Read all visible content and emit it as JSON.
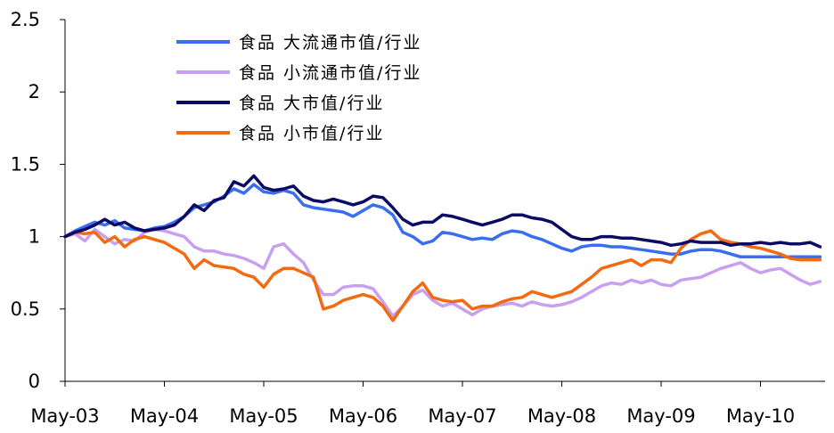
{
  "chart_data": {
    "type": "line",
    "title": "",
    "xlabel": "",
    "ylabel": "",
    "ylim": [
      0,
      2.5
    ],
    "yticks": [
      0,
      0.5,
      1,
      1.5,
      2,
      2.5
    ],
    "ytick_labels": [
      "0",
      "0.5",
      "1",
      "1.5",
      "2",
      "2.5"
    ],
    "xlim": [
      0,
      7.65
    ],
    "xticks": [
      0,
      1,
      2,
      3,
      4,
      5,
      6,
      7
    ],
    "xtick_labels": [
      "May-03",
      "May-04",
      "May-05",
      "May-06",
      "May-07",
      "May-08",
      "May-09",
      "May-10"
    ],
    "grid": false,
    "legend_position": "top-left",
    "series": [
      {
        "name": "食品 大流通市值/行业",
        "color": "#3A6EF0",
        "x": [
          0,
          0.1,
          0.2,
          0.3,
          0.4,
          0.5,
          0.6,
          0.7,
          0.8,
          0.9,
          1.0,
          1.1,
          1.2,
          1.3,
          1.4,
          1.5,
          1.6,
          1.7,
          1.8,
          1.9,
          2.0,
          2.1,
          2.2,
          2.3,
          2.4,
          2.5,
          2.6,
          2.7,
          2.8,
          2.9,
          3.0,
          3.1,
          3.2,
          3.3,
          3.4,
          3.5,
          3.6,
          3.7,
          3.8,
          3.9,
          4.0,
          4.1,
          4.2,
          4.3,
          4.4,
          4.5,
          4.6,
          4.7,
          4.8,
          4.9,
          5.0,
          5.1,
          5.2,
          5.3,
          5.4,
          5.5,
          5.6,
          5.7,
          5.8,
          5.9,
          6.0,
          6.1,
          6.2,
          6.3,
          6.4,
          6.5,
          6.6,
          6.7,
          6.8,
          6.9,
          7.0,
          7.1,
          7.2,
          7.3,
          7.4,
          7.5,
          7.6
        ],
        "y": [
          1.0,
          1.04,
          1.07,
          1.1,
          1.08,
          1.11,
          1.06,
          1.05,
          1.04,
          1.06,
          1.07,
          1.1,
          1.14,
          1.2,
          1.22,
          1.24,
          1.28,
          1.33,
          1.3,
          1.36,
          1.31,
          1.3,
          1.32,
          1.3,
          1.22,
          1.2,
          1.19,
          1.18,
          1.17,
          1.14,
          1.18,
          1.22,
          1.2,
          1.15,
          1.03,
          1.0,
          0.95,
          0.97,
          1.03,
          1.02,
          1.0,
          0.98,
          0.99,
          0.98,
          1.02,
          1.04,
          1.03,
          1.0,
          0.98,
          0.95,
          0.92,
          0.9,
          0.93,
          0.94,
          0.94,
          0.93,
          0.93,
          0.92,
          0.91,
          0.9,
          0.89,
          0.88,
          0.88,
          0.9,
          0.91,
          0.91,
          0.9,
          0.88,
          0.86,
          0.86,
          0.86,
          0.86,
          0.86,
          0.86,
          0.86,
          0.86,
          0.86
        ]
      },
      {
        "name": "食品 小流通市值/行业",
        "color": "#C9A0F0",
        "x": [
          0,
          0.1,
          0.2,
          0.3,
          0.4,
          0.5,
          0.6,
          0.7,
          0.8,
          0.9,
          1.0,
          1.1,
          1.2,
          1.3,
          1.4,
          1.5,
          1.6,
          1.7,
          1.8,
          1.9,
          2.0,
          2.1,
          2.2,
          2.3,
          2.4,
          2.5,
          2.6,
          2.7,
          2.8,
          2.9,
          3.0,
          3.1,
          3.2,
          3.3,
          3.4,
          3.5,
          3.6,
          3.7,
          3.8,
          3.9,
          4.0,
          4.1,
          4.2,
          4.3,
          4.4,
          4.5,
          4.6,
          4.7,
          4.8,
          4.9,
          5.0,
          5.1,
          5.2,
          5.3,
          5.4,
          5.5,
          5.6,
          5.7,
          5.8,
          5.9,
          6.0,
          6.1,
          6.2,
          6.3,
          6.4,
          6.5,
          6.6,
          6.7,
          6.8,
          6.9,
          7.0,
          7.1,
          7.2,
          7.3,
          7.4,
          7.5,
          7.6
        ],
        "y": [
          1.0,
          1.02,
          0.97,
          1.05,
          1.0,
          0.95,
          0.98,
          0.97,
          1.03,
          1.05,
          1.04,
          1.02,
          1.0,
          0.93,
          0.9,
          0.9,
          0.88,
          0.87,
          0.85,
          0.82,
          0.78,
          0.93,
          0.95,
          0.88,
          0.82,
          0.7,
          0.6,
          0.6,
          0.65,
          0.66,
          0.66,
          0.64,
          0.55,
          0.45,
          0.52,
          0.6,
          0.63,
          0.56,
          0.52,
          0.54,
          0.5,
          0.46,
          0.5,
          0.52,
          0.53,
          0.54,
          0.52,
          0.55,
          0.53,
          0.52,
          0.53,
          0.55,
          0.58,
          0.62,
          0.66,
          0.68,
          0.67,
          0.7,
          0.68,
          0.7,
          0.67,
          0.66,
          0.7,
          0.71,
          0.72,
          0.75,
          0.78,
          0.8,
          0.82,
          0.78,
          0.75,
          0.77,
          0.78,
          0.74,
          0.7,
          0.67,
          0.69
        ]
      },
      {
        "name": "食品 大市值/行业",
        "color": "#0B0B66",
        "x": [
          0,
          0.1,
          0.2,
          0.3,
          0.4,
          0.5,
          0.6,
          0.7,
          0.8,
          0.9,
          1.0,
          1.1,
          1.2,
          1.3,
          1.4,
          1.5,
          1.6,
          1.7,
          1.8,
          1.9,
          2.0,
          2.1,
          2.2,
          2.3,
          2.4,
          2.5,
          2.6,
          2.7,
          2.8,
          2.9,
          3.0,
          3.1,
          3.2,
          3.3,
          3.4,
          3.5,
          3.6,
          3.7,
          3.8,
          3.9,
          4.0,
          4.1,
          4.2,
          4.3,
          4.4,
          4.5,
          4.6,
          4.7,
          4.8,
          4.9,
          5.0,
          5.1,
          5.2,
          5.3,
          5.4,
          5.5,
          5.6,
          5.7,
          5.8,
          5.9,
          6.0,
          6.1,
          6.2,
          6.3,
          6.4,
          6.5,
          6.6,
          6.7,
          6.8,
          6.9,
          7.0,
          7.1,
          7.2,
          7.3,
          7.4,
          7.5,
          7.6
        ],
        "y": [
          1.0,
          1.03,
          1.05,
          1.08,
          1.12,
          1.08,
          1.1,
          1.06,
          1.04,
          1.05,
          1.06,
          1.08,
          1.14,
          1.22,
          1.18,
          1.25,
          1.27,
          1.38,
          1.35,
          1.42,
          1.34,
          1.32,
          1.33,
          1.35,
          1.28,
          1.25,
          1.24,
          1.26,
          1.24,
          1.22,
          1.24,
          1.28,
          1.27,
          1.2,
          1.12,
          1.08,
          1.1,
          1.1,
          1.15,
          1.14,
          1.12,
          1.1,
          1.08,
          1.1,
          1.12,
          1.15,
          1.15,
          1.13,
          1.12,
          1.1,
          1.05,
          1.0,
          0.98,
          0.98,
          1.0,
          1.0,
          0.99,
          0.99,
          0.98,
          0.97,
          0.96,
          0.94,
          0.95,
          0.97,
          0.96,
          0.96,
          0.96,
          0.94,
          0.95,
          0.95,
          0.96,
          0.95,
          0.96,
          0.95,
          0.95,
          0.96,
          0.93
        ]
      },
      {
        "name": "食品 小市值/行业",
        "color": "#F26A12",
        "x": [
          0,
          0.1,
          0.2,
          0.3,
          0.4,
          0.5,
          0.6,
          0.7,
          0.8,
          0.9,
          1.0,
          1.1,
          1.2,
          1.3,
          1.4,
          1.5,
          1.6,
          1.7,
          1.8,
          1.9,
          2.0,
          2.1,
          2.2,
          2.3,
          2.4,
          2.5,
          2.6,
          2.7,
          2.8,
          2.9,
          3.0,
          3.1,
          3.2,
          3.3,
          3.4,
          3.5,
          3.6,
          3.7,
          3.8,
          3.9,
          4.0,
          4.1,
          4.2,
          4.3,
          4.4,
          4.5,
          4.6,
          4.7,
          4.8,
          4.9,
          5.0,
          5.1,
          5.2,
          5.3,
          5.4,
          5.5,
          5.6,
          5.7,
          5.8,
          5.9,
          6.0,
          6.1,
          6.2,
          6.3,
          6.4,
          6.5,
          6.6,
          6.7,
          6.8,
          6.9,
          7.0,
          7.1,
          7.2,
          7.3,
          7.4,
          7.5,
          7.6
        ],
        "y": [
          1.0,
          1.03,
          1.02,
          1.03,
          0.96,
          1.0,
          0.93,
          0.98,
          1.0,
          0.98,
          0.96,
          0.92,
          0.88,
          0.78,
          0.84,
          0.8,
          0.79,
          0.78,
          0.74,
          0.72,
          0.65,
          0.74,
          0.78,
          0.78,
          0.75,
          0.72,
          0.5,
          0.52,
          0.56,
          0.58,
          0.6,
          0.58,
          0.52,
          0.42,
          0.52,
          0.62,
          0.68,
          0.58,
          0.56,
          0.55,
          0.56,
          0.5,
          0.52,
          0.52,
          0.55,
          0.57,
          0.58,
          0.62,
          0.6,
          0.58,
          0.6,
          0.62,
          0.67,
          0.72,
          0.78,
          0.8,
          0.82,
          0.84,
          0.8,
          0.84,
          0.84,
          0.82,
          0.92,
          0.98,
          1.02,
          1.04,
          0.98,
          0.96,
          0.95,
          0.93,
          0.92,
          0.9,
          0.88,
          0.85,
          0.84,
          0.84,
          0.84
        ]
      }
    ]
  }
}
